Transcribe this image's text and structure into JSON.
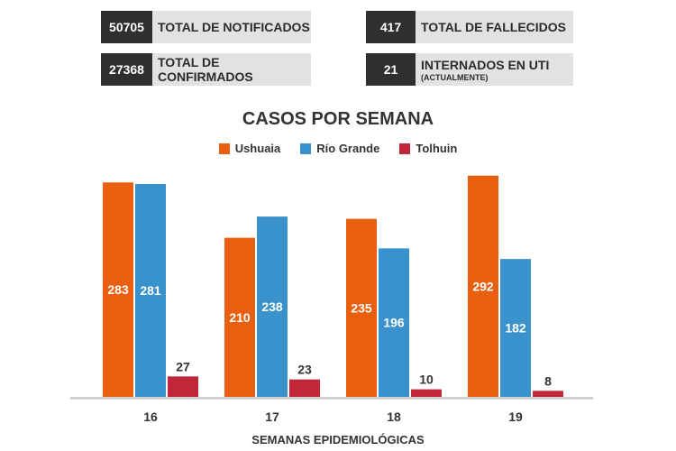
{
  "stats": {
    "notificados": {
      "value": "50705",
      "label": "TOTAL DE NOTIFICADOS"
    },
    "confirmados": {
      "value": "27368",
      "label": "TOTAL DE CONFIRMADOS"
    },
    "fallecidos": {
      "value": "417",
      "label": "TOTAL DE FALLECIDOS"
    },
    "uti": {
      "value": "21",
      "label": "INTERNADOS EN UTI",
      "sublabel": "(ACTUALMENTE)"
    }
  },
  "colors": {
    "ushuaia": "#e8600f",
    "rio_grande": "#3a92cc",
    "tolhuin": "#c0283a",
    "axis": "#d0d0d0"
  },
  "chart_data": {
    "type": "bar",
    "title": "CASOS POR SEMANA",
    "xlabel": "SEMANAS EPIDEMIOLÓGICAS",
    "ylabel": "",
    "categories": [
      "16",
      "17",
      "18",
      "19"
    ],
    "series": [
      {
        "name": "Ushuaia",
        "values": [
          283,
          210,
          235,
          292
        ]
      },
      {
        "name": "Río Grande",
        "values": [
          281,
          238,
          196,
          182
        ]
      },
      {
        "name": "Tolhuin",
        "values": [
          27,
          23,
          10,
          8
        ]
      }
    ],
    "ylim": [
      0,
      300
    ],
    "legend": "top-center",
    "grid": false
  }
}
